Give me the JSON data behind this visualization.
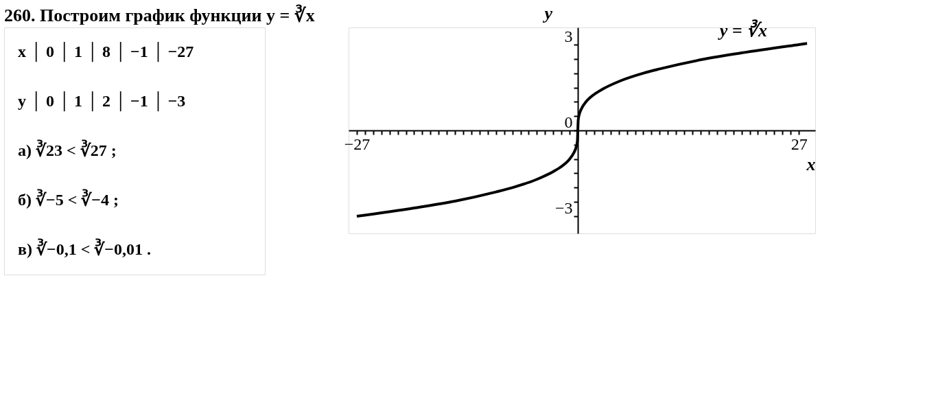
{
  "chart_data": [
    {
      "type": "other",
      "title": "260. Построим график функции y = ∛x",
      "annotations": [
        "x │ 0 │ 1 │ 8 │ −1 │ −27",
        "y │ 0 │ 1 │ 2 │ −1 │ −3",
        "а) ∛23 < ∛27 ;",
        "б) ∛−5 < ∛−4 ;",
        "в) ∛−0,1 < ∛−0,01 ."
      ]
    },
    {
      "type": "line",
      "xlabel": "x",
      "ylabel": "y",
      "x": [
        -27,
        -20,
        -15,
        -10,
        -8,
        -5,
        -3,
        -2,
        -1,
        -0.5,
        -0.2,
        -0.05,
        0,
        0.05,
        0.2,
        0.5,
        1,
        2,
        3,
        5,
        8,
        10,
        15,
        20,
        27,
        28
      ],
      "series": [
        {
          "color": "#000000",
          "values": [
            -3,
            -2.71,
            -2.47,
            -2.15,
            -2,
            -1.71,
            -1.44,
            -1.26,
            -1,
            -0.79,
            -0.58,
            -0.37,
            0,
            0.37,
            0.58,
            0.79,
            1,
            1.26,
            1.44,
            1.71,
            2,
            2.15,
            2.47,
            2.71,
            3,
            3.04
          ]
        }
      ],
      "annotations": [
        "y = ∛x"
      ],
      "xlim": [
        -28,
        29
      ],
      "ylim": [
        -3.6,
        3.6
      ],
      "xticks": [
        {
          "value": -27,
          "label": "−27"
        },
        {
          "value": -26,
          "label": null
        },
        {
          "value": -25,
          "label": null
        },
        {
          "value": -24,
          "label": null
        },
        {
          "value": -23,
          "label": null
        },
        {
          "value": -22,
          "label": null
        },
        {
          "value": -21,
          "label": null
        },
        {
          "value": -20,
          "label": null
        },
        {
          "value": -19,
          "label": null
        },
        {
          "value": -18,
          "label": null
        },
        {
          "value": -17,
          "label": null
        },
        {
          "value": -16,
          "label": null
        },
        {
          "value": -15,
          "label": null
        },
        {
          "value": -14,
          "label": null
        },
        {
          "value": -13,
          "label": null
        },
        {
          "value": -12,
          "label": null
        },
        {
          "value": -11,
          "label": null
        },
        {
          "value": -10,
          "label": null
        },
        {
          "value": -9,
          "label": null
        },
        {
          "value": -8,
          "label": null
        },
        {
          "value": -7,
          "label": null
        },
        {
          "value": -6,
          "label": null
        },
        {
          "value": -5,
          "label": null
        },
        {
          "value": -4,
          "label": null
        },
        {
          "value": -3,
          "label": null
        },
        {
          "value": -2,
          "label": null
        },
        {
          "value": -1,
          "label": null
        },
        {
          "value": 1,
          "label": null
        },
        {
          "value": 2,
          "label": null
        },
        {
          "value": 3,
          "label": null
        },
        {
          "value": 4,
          "label": null
        },
        {
          "value": 5,
          "label": null
        },
        {
          "value": 6,
          "label": null
        },
        {
          "value": 7,
          "label": null
        },
        {
          "value": 8,
          "label": null
        },
        {
          "value": 9,
          "label": null
        },
        {
          "value": 10,
          "label": null
        },
        {
          "value": 11,
          "label": null
        },
        {
          "value": 12,
          "label": null
        },
        {
          "value": 13,
          "label": null
        },
        {
          "value": 14,
          "label": null
        },
        {
          "value": 15,
          "label": null
        },
        {
          "value": 16,
          "label": null
        },
        {
          "value": 17,
          "label": null
        },
        {
          "value": 18,
          "label": null
        },
        {
          "value": 19,
          "label": null
        },
        {
          "value": 20,
          "label": null
        },
        {
          "value": 21,
          "label": null
        },
        {
          "value": 22,
          "label": null
        },
        {
          "value": 23,
          "label": null
        },
        {
          "value": 24,
          "label": null
        },
        {
          "value": 25,
          "label": null
        },
        {
          "value": 26,
          "label": null
        },
        27
      ],
      "yticks": [
        {
          "value": -3,
          "label": "−3"
        },
        {
          "value": -2.5,
          "label": null
        },
        {
          "value": -2,
          "label": null
        },
        {
          "value": -1.5,
          "label": null
        },
        {
          "value": -1,
          "label": null
        },
        {
          "value": -0.5,
          "label": null
        },
        {
          "value": 0,
          "label": "0"
        },
        {
          "value": 0.5,
          "label": null
        },
        {
          "value": 1,
          "label": null
        },
        {
          "value": 1.5,
          "label": null
        },
        {
          "value": 2,
          "label": null
        },
        {
          "value": 2.5,
          "label": null
        },
        {
          "value": 3,
          "label": "3"
        }
      ],
      "grid": false,
      "line_style": "solid",
      "marker": "none"
    }
  ]
}
